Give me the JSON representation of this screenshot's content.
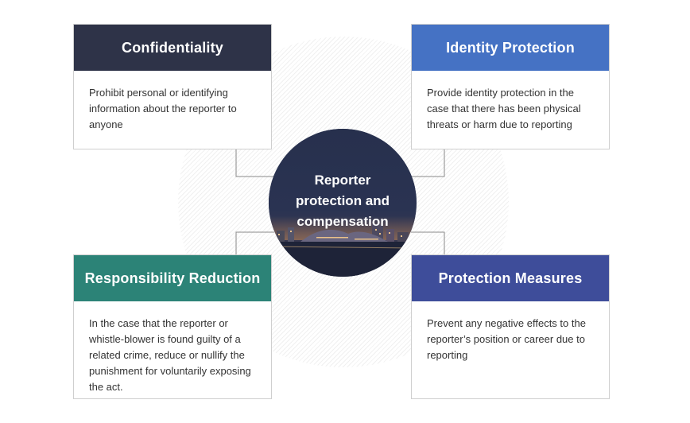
{
  "center": {
    "title_line1": "Reporter",
    "title_line2": "protection and",
    "title_line3": "compensation"
  },
  "cards": {
    "confidentiality": {
      "title": "Confidentiality",
      "body": "Prohibit personal or identifying information about the reporter to anyone",
      "color": "#2e3348"
    },
    "identity_protection": {
      "title": "Identity Protection",
      "body": "Provide identity protection in the case that there has been physical threats or harm due to reporting",
      "color": "#4572c4"
    },
    "responsibility_reduction": {
      "title": "Responsibility Reduction",
      "body": "In the case that the reporter or whistle-blower is found guilty of a related crime, reduce or nullify the punishment for voluntarily exposing the act.",
      "color": "#2c8377"
    },
    "protection_measures": {
      "title": "Protection Measures",
      "body": "Prevent any negative effects to the reporter’s position or career due to reporting",
      "color": "#3e4d9a"
    }
  }
}
